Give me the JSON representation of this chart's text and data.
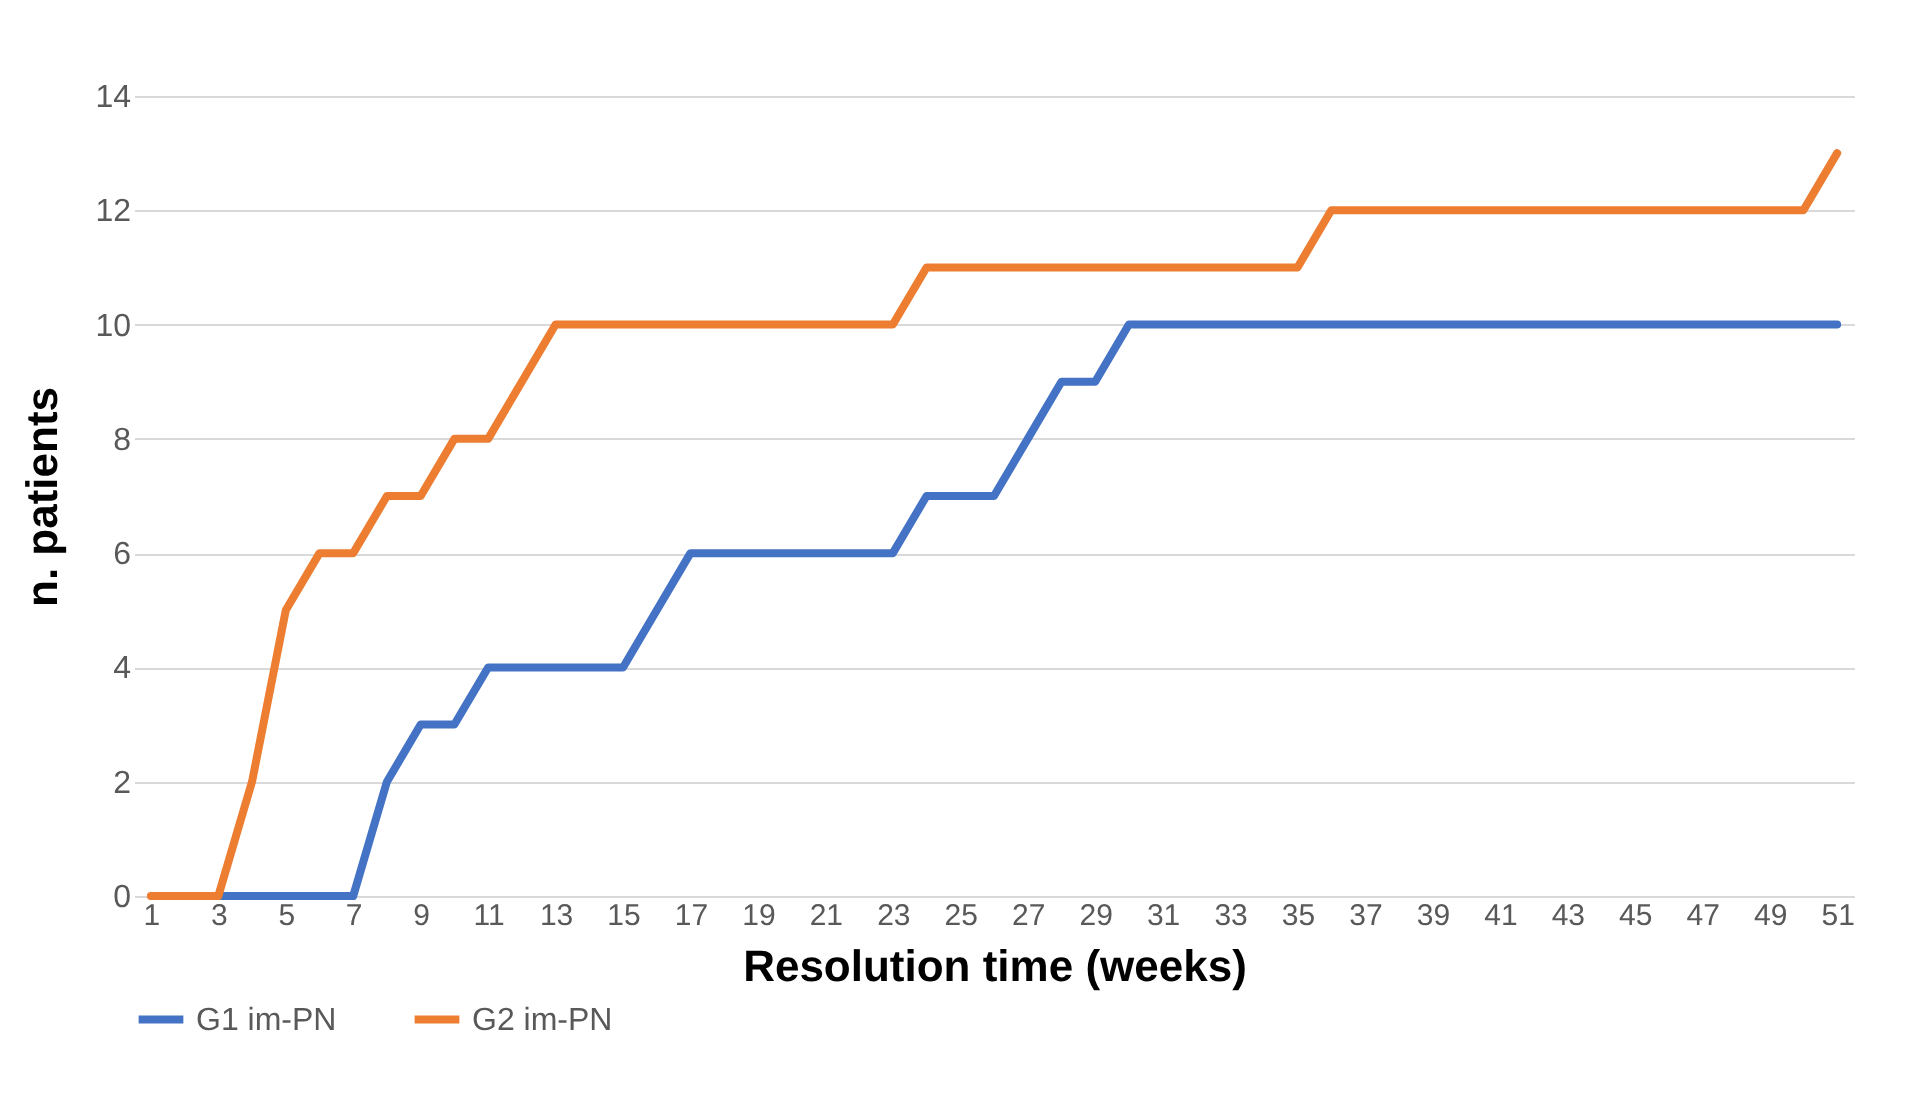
{
  "chart_data": {
    "type": "line",
    "xlabel": "Resolution time (weeks)",
    "ylabel": "n. patients",
    "x": [
      1,
      2,
      3,
      4,
      5,
      6,
      7,
      8,
      9,
      10,
      11,
      12,
      13,
      14,
      15,
      16,
      17,
      18,
      19,
      20,
      21,
      22,
      23,
      24,
      25,
      26,
      27,
      28,
      29,
      30,
      31,
      32,
      33,
      34,
      35,
      36,
      37,
      38,
      39,
      40,
      41,
      42,
      43,
      44,
      45,
      46,
      47,
      48,
      49,
      50,
      51
    ],
    "series": [
      {
        "name": "G1 im-PN",
        "color": "#4472c4",
        "values": [
          null,
          null,
          0,
          0,
          0,
          0,
          0,
          2,
          3,
          3,
          4,
          4,
          4,
          4,
          4,
          5,
          6,
          6,
          6,
          6,
          6,
          6,
          6,
          7,
          7,
          7,
          8,
          9,
          9,
          10,
          10,
          10,
          10,
          10,
          10,
          10,
          10,
          10,
          10,
          10,
          10,
          10,
          10,
          10,
          10,
          10,
          10,
          10,
          10,
          10,
          10
        ]
      },
      {
        "name": "G2 im-PN",
        "color": "#ed7d31",
        "values": [
          0,
          0,
          0,
          2,
          5,
          6,
          6,
          7,
          7,
          8,
          8,
          9,
          10,
          10,
          10,
          10,
          10,
          10,
          10,
          10,
          10,
          10,
          10,
          11,
          11,
          11,
          11,
          11,
          11,
          11,
          11,
          11,
          11,
          11,
          11,
          12,
          12,
          12,
          12,
          12,
          12,
          12,
          12,
          12,
          12,
          12,
          12,
          12,
          12,
          12,
          13
        ]
      }
    ],
    "xlim": [
      0.5,
      51.5
    ],
    "xticks": [
      1,
      3,
      5,
      7,
      9,
      11,
      13,
      15,
      17,
      19,
      21,
      23,
      25,
      27,
      29,
      31,
      33,
      35,
      37,
      39,
      41,
      43,
      45,
      47,
      49,
      51
    ],
    "ylim": [
      0,
      14
    ],
    "yticks": [
      0,
      2,
      4,
      6,
      8,
      10,
      12,
      14
    ],
    "grid": "y",
    "legend": "bottom",
    "marker": "none",
    "line_style": "solid"
  }
}
